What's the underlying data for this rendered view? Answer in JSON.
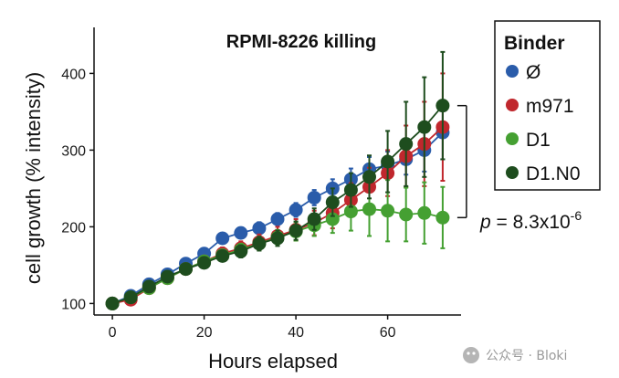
{
  "chart_data": {
    "type": "line",
    "title": "RPMI-8226 killing",
    "xlabel": "Hours elapsed",
    "ylabel": "cell growth (% intensity)",
    "xlim": [
      -4,
      76
    ],
    "ylim": [
      85,
      460
    ],
    "xticks": [
      0,
      20,
      40,
      60
    ],
    "yticks": [
      100,
      200,
      300,
      400
    ],
    "grid": false,
    "legend": {
      "title": "Binder",
      "placement": "right"
    },
    "x": [
      0,
      4,
      8,
      12,
      16,
      20,
      24,
      28,
      32,
      36,
      40,
      44,
      48,
      52,
      56,
      60,
      64,
      68,
      72
    ],
    "series": [
      {
        "name": "Ø",
        "color": "#2a5caa",
        "values": [
          100,
          110,
          125,
          138,
          152,
          165,
          185,
          192,
          198,
          210,
          222,
          238,
          250,
          262,
          275,
          280,
          288,
          300,
          323
        ],
        "errors": [
          3,
          4,
          5,
          5,
          5,
          6,
          7,
          7,
          8,
          8,
          9,
          10,
          12,
          14,
          16,
          18,
          20,
          28,
          35
        ]
      },
      {
        "name": "m971",
        "color": "#c0272d",
        "values": [
          100,
          105,
          120,
          133,
          145,
          155,
          165,
          172,
          180,
          188,
          196,
          205,
          218,
          235,
          252,
          270,
          292,
          308,
          330
        ],
        "errors": [
          3,
          5,
          5,
          6,
          6,
          7,
          8,
          9,
          10,
          12,
          14,
          16,
          20,
          22,
          25,
          30,
          40,
          55,
          70
        ]
      },
      {
        "name": "D1",
        "color": "#45a032",
        "values": [
          100,
          108,
          120,
          133,
          145,
          155,
          163,
          170,
          178,
          186,
          194,
          202,
          210,
          220,
          223,
          221,
          216,
          218,
          212
        ],
        "errors": [
          3,
          4,
          5,
          5,
          6,
          6,
          7,
          8,
          9,
          10,
          12,
          14,
          18,
          25,
          35,
          40,
          35,
          40,
          40
        ]
      },
      {
        "name": "D1.N0",
        "color": "#1e4d1e",
        "values": [
          100,
          108,
          122,
          135,
          145,
          153,
          162,
          168,
          178,
          185,
          195,
          210,
          232,
          248,
          265,
          285,
          308,
          330,
          358
        ],
        "errors": [
          3,
          4,
          5,
          5,
          6,
          6,
          7,
          8,
          9,
          10,
          12,
          14,
          18,
          22,
          28,
          40,
          55,
          65,
          70
        ]
      }
    ],
    "bracket_series": [
      "D1.N0",
      "D1"
    ],
    "annotation": {
      "p_label": "p",
      "p_value": " = 8.3x10",
      "p_exponent": "-6"
    }
  },
  "watermark": {
    "text": "公众号 · Bloki"
  }
}
